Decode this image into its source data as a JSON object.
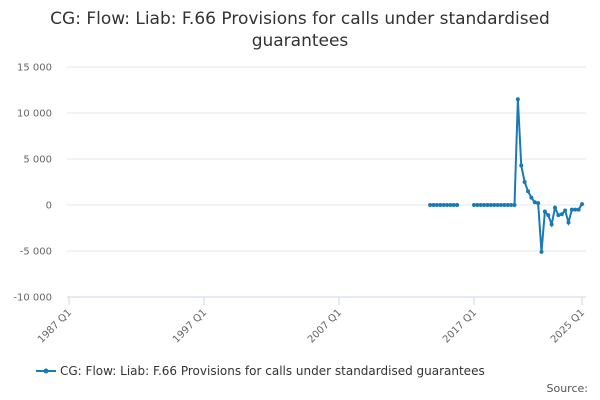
{
  "chart_data": {
    "type": "line",
    "title": "CG: Flow: Liab: F.66 Provisions for calls under standardised guarantees",
    "source": "Source:",
    "x": [
      2013.75,
      2014.0,
      2014.25,
      2014.5,
      2014.75,
      2015.0,
      2015.25,
      2015.5,
      2015.75,
      2016.0,
      2016.25,
      2016.5,
      2016.75,
      2017.0,
      2017.25,
      2017.5,
      2017.75,
      2018.0,
      2018.25,
      2018.5,
      2018.75,
      2019.0,
      2019.25,
      2019.5,
      2019.75,
      2020.0,
      2020.25,
      2020.5,
      2020.75,
      2021.0,
      2021.25,
      2021.5,
      2021.75,
      2022.0,
      2022.25,
      2022.5,
      2022.75,
      2023.0,
      2023.25,
      2023.5,
      2023.75,
      2024.0,
      2024.25,
      2024.5,
      2024.75,
      2025.0
    ],
    "series": [
      {
        "name": "CG: Flow: Liab: F.66 Provisions for calls under standardised guarantees",
        "color": "#1a7ab5",
        "values": [
          0,
          0,
          0,
          0,
          0,
          0,
          0,
          0,
          0,
          null,
          null,
          null,
          null,
          0,
          0,
          0,
          0,
          0,
          0,
          0,
          0,
          0,
          0,
          0,
          0,
          0,
          11500,
          4300,
          2500,
          1500,
          800,
          300,
          200,
          -5100,
          -700,
          -1100,
          -2100,
          -300,
          -1100,
          -1000,
          -600,
          -1900,
          -500,
          -500,
          -500,
          100
        ]
      }
    ],
    "xlim": [
      1987.0,
      2025.0
    ],
    "xticks": [
      {
        "value": 1987.0,
        "label": "1987 Q1"
      },
      {
        "value": 1997.0,
        "label": "1997 Q1"
      },
      {
        "value": 2007.0,
        "label": "2007 Q1"
      },
      {
        "value": 2017.0,
        "label": "2017 Q1"
      },
      {
        "value": 2025.0,
        "label": "2025 Q1"
      }
    ],
    "ylim": [
      -10000,
      15000
    ],
    "yticks": [
      {
        "value": -10000,
        "label": "-10 000"
      },
      {
        "value": -5000,
        "label": "-5 000"
      },
      0,
      {
        "value": 5000,
        "label": "5 000"
      },
      {
        "value": 10000,
        "label": "10 000"
      },
      {
        "value": 15000,
        "label": "15 000"
      }
    ],
    "grid": true,
    "legend": "bottom"
  }
}
